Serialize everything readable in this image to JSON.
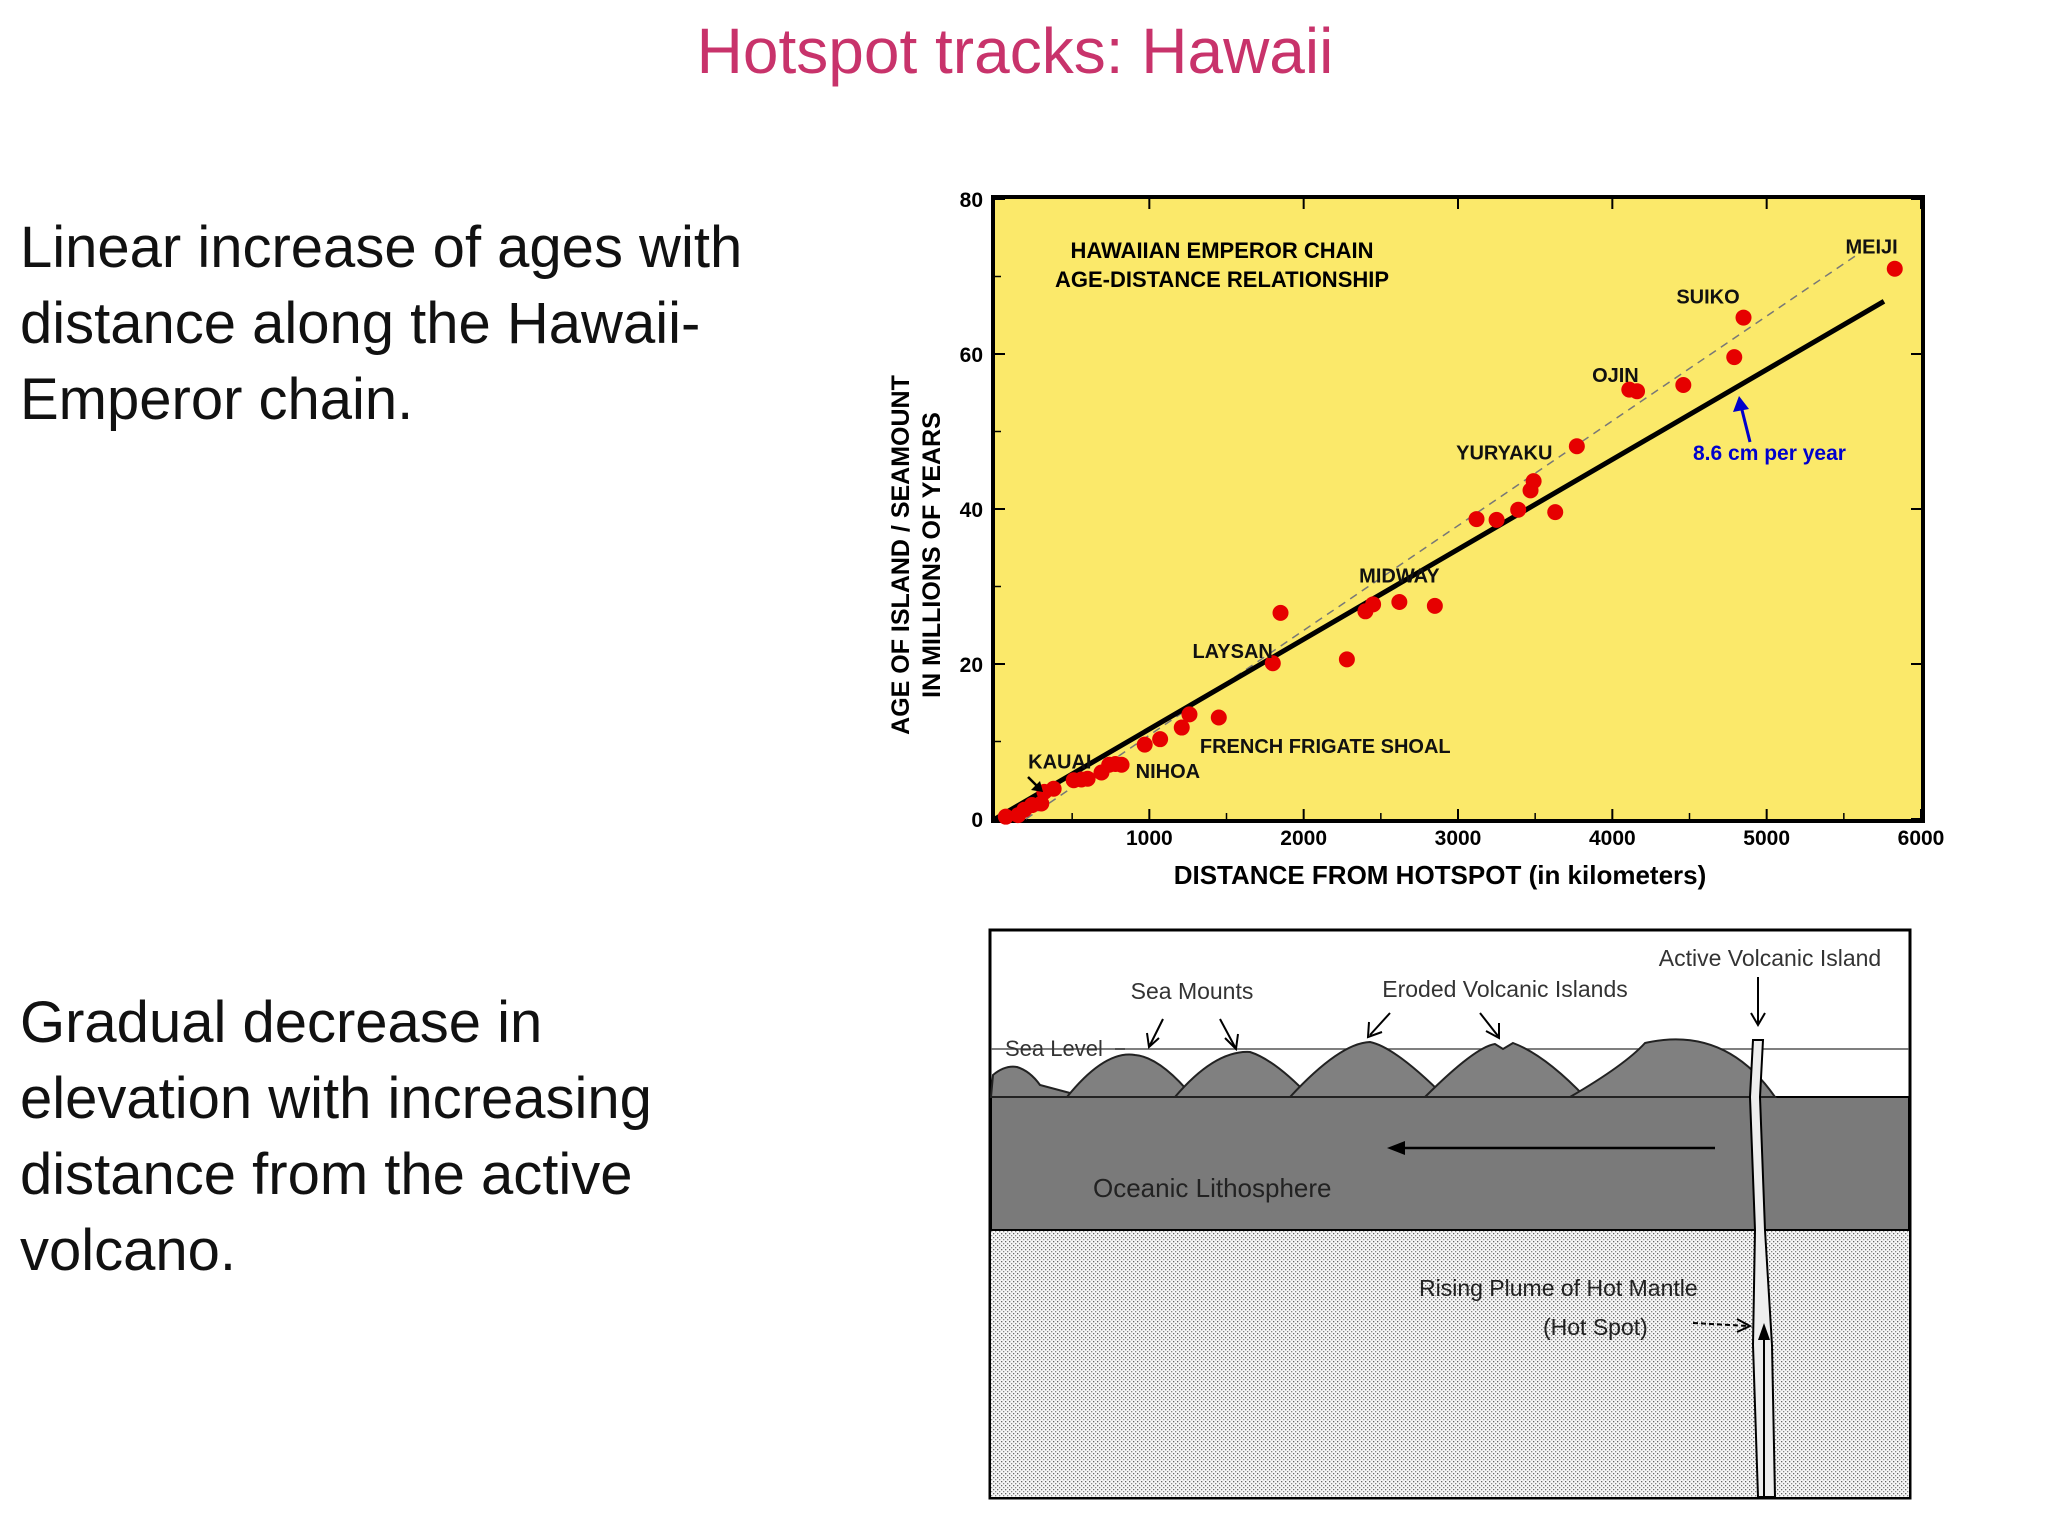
{
  "slide": {
    "title": "Hotspot tracks: Hawaii",
    "bullet1": "Linear increase of ages with distance along the Hawaii-Emperor chain.",
    "bullet2": "Gradual decrease in elevation with increasing distance from the active volcano."
  },
  "chart_data": {
    "type": "scatter",
    "title": "HAWAIIAN EMPEROR CHAIN",
    "subtitle": "AGE-DISTANCE RELATIONSHIP",
    "xlabel": "DISTANCE  FROM  HOTSPOT  (in kilometers)",
    "ylabel": "AGE OF ISLAND / SEAMOUNT",
    "ylabel2": "IN MILLIONS OF YEARS",
    "xlim": [
      0,
      6000
    ],
    "ylim": [
      0,
      80
    ],
    "xticks": [
      1000,
      2000,
      3000,
      4000,
      5000,
      6000
    ],
    "yticks": [
      0,
      20,
      40,
      60,
      80
    ],
    "background": "#fbe96a",
    "point_color": "#e60000",
    "rate_color": "#0000cc",
    "points": [
      {
        "x": 70,
        "y": 0.3
      },
      {
        "x": 150,
        "y": 0.5
      },
      {
        "x": 190,
        "y": 1.2
      },
      {
        "x": 240,
        "y": 1.8
      },
      {
        "x": 300,
        "y": 2.0
      },
      {
        "x": 320,
        "y": 3.5
      },
      {
        "x": 380,
        "y": 3.9
      },
      {
        "x": 510,
        "y": 5.0
      },
      {
        "x": 560,
        "y": 5.1
      },
      {
        "x": 600,
        "y": 5.2
      },
      {
        "x": 690,
        "y": 6.0
      },
      {
        "x": 740,
        "y": 7.0
      },
      {
        "x": 780,
        "y": 7.1
      },
      {
        "x": 820,
        "y": 7.0
      },
      {
        "x": 970,
        "y": 9.6
      },
      {
        "x": 1070,
        "y": 10.3
      },
      {
        "x": 1210,
        "y": 11.8
      },
      {
        "x": 1260,
        "y": 13.5
      },
      {
        "x": 1450,
        "y": 13.1
      },
      {
        "x": 1800,
        "y": 20.1
      },
      {
        "x": 1850,
        "y": 26.6
      },
      {
        "x": 2280,
        "y": 20.6
      },
      {
        "x": 2400,
        "y": 26.8
      },
      {
        "x": 2450,
        "y": 27.7
      },
      {
        "x": 2620,
        "y": 28.0
      },
      {
        "x": 2850,
        "y": 27.5
      },
      {
        "x": 3120,
        "y": 38.7
      },
      {
        "x": 3250,
        "y": 38.6
      },
      {
        "x": 3390,
        "y": 39.9
      },
      {
        "x": 3470,
        "y": 42.4
      },
      {
        "x": 3490,
        "y": 43.6
      },
      {
        "x": 3630,
        "y": 39.6
      },
      {
        "x": 3770,
        "y": 48.1
      },
      {
        "x": 4110,
        "y": 55.4
      },
      {
        "x": 4160,
        "y": 55.2
      },
      {
        "x": 4460,
        "y": 56.0
      },
      {
        "x": 4790,
        "y": 59.6
      },
      {
        "x": 4850,
        "y": 64.7
      },
      {
        "x": 5830,
        "y": 71.0
      }
    ],
    "fit_line": {
      "x": [
        0,
        5760
      ],
      "y": [
        0,
        66.8
      ]
    },
    "dashed_line": {
      "x": [
        200,
        5600
      ],
      "y": [
        0,
        73
      ]
    },
    "labels": [
      {
        "text": "KAUAI",
        "x": 420,
        "y": 6.5
      },
      {
        "text": "NIHOA",
        "x": 1120,
        "y": 5.3
      },
      {
        "text": "FRENCH FRIGATE SHOAL",
        "x": 2140,
        "y": 8.5
      },
      {
        "text": "LAYSAN",
        "x": 1540,
        "y": 20.8
      },
      {
        "text": "MIDWAY",
        "x": 2620,
        "y": 30.5
      },
      {
        "text": "YURYAKU",
        "x": 3300,
        "y": 46.4
      },
      {
        "text": "OJIN",
        "x": 4020,
        "y": 56.4
      },
      {
        "text": "SUIKO",
        "x": 4620,
        "y": 66.5
      },
      {
        "text": "MEIJI",
        "x": 5680,
        "y": 73.0
      }
    ],
    "rate_label": "8.6 cm per year"
  },
  "diagram": {
    "sea_mounts": "Sea Mounts",
    "eroded": "Eroded Volcanic Islands",
    "active": "Active Volcanic Island",
    "sea_level": "Sea Level",
    "lithosphere": "Oceanic Lithosphere",
    "plume1": "Rising Plume of Hot Mantle",
    "plume2": "(Hot Spot)"
  }
}
